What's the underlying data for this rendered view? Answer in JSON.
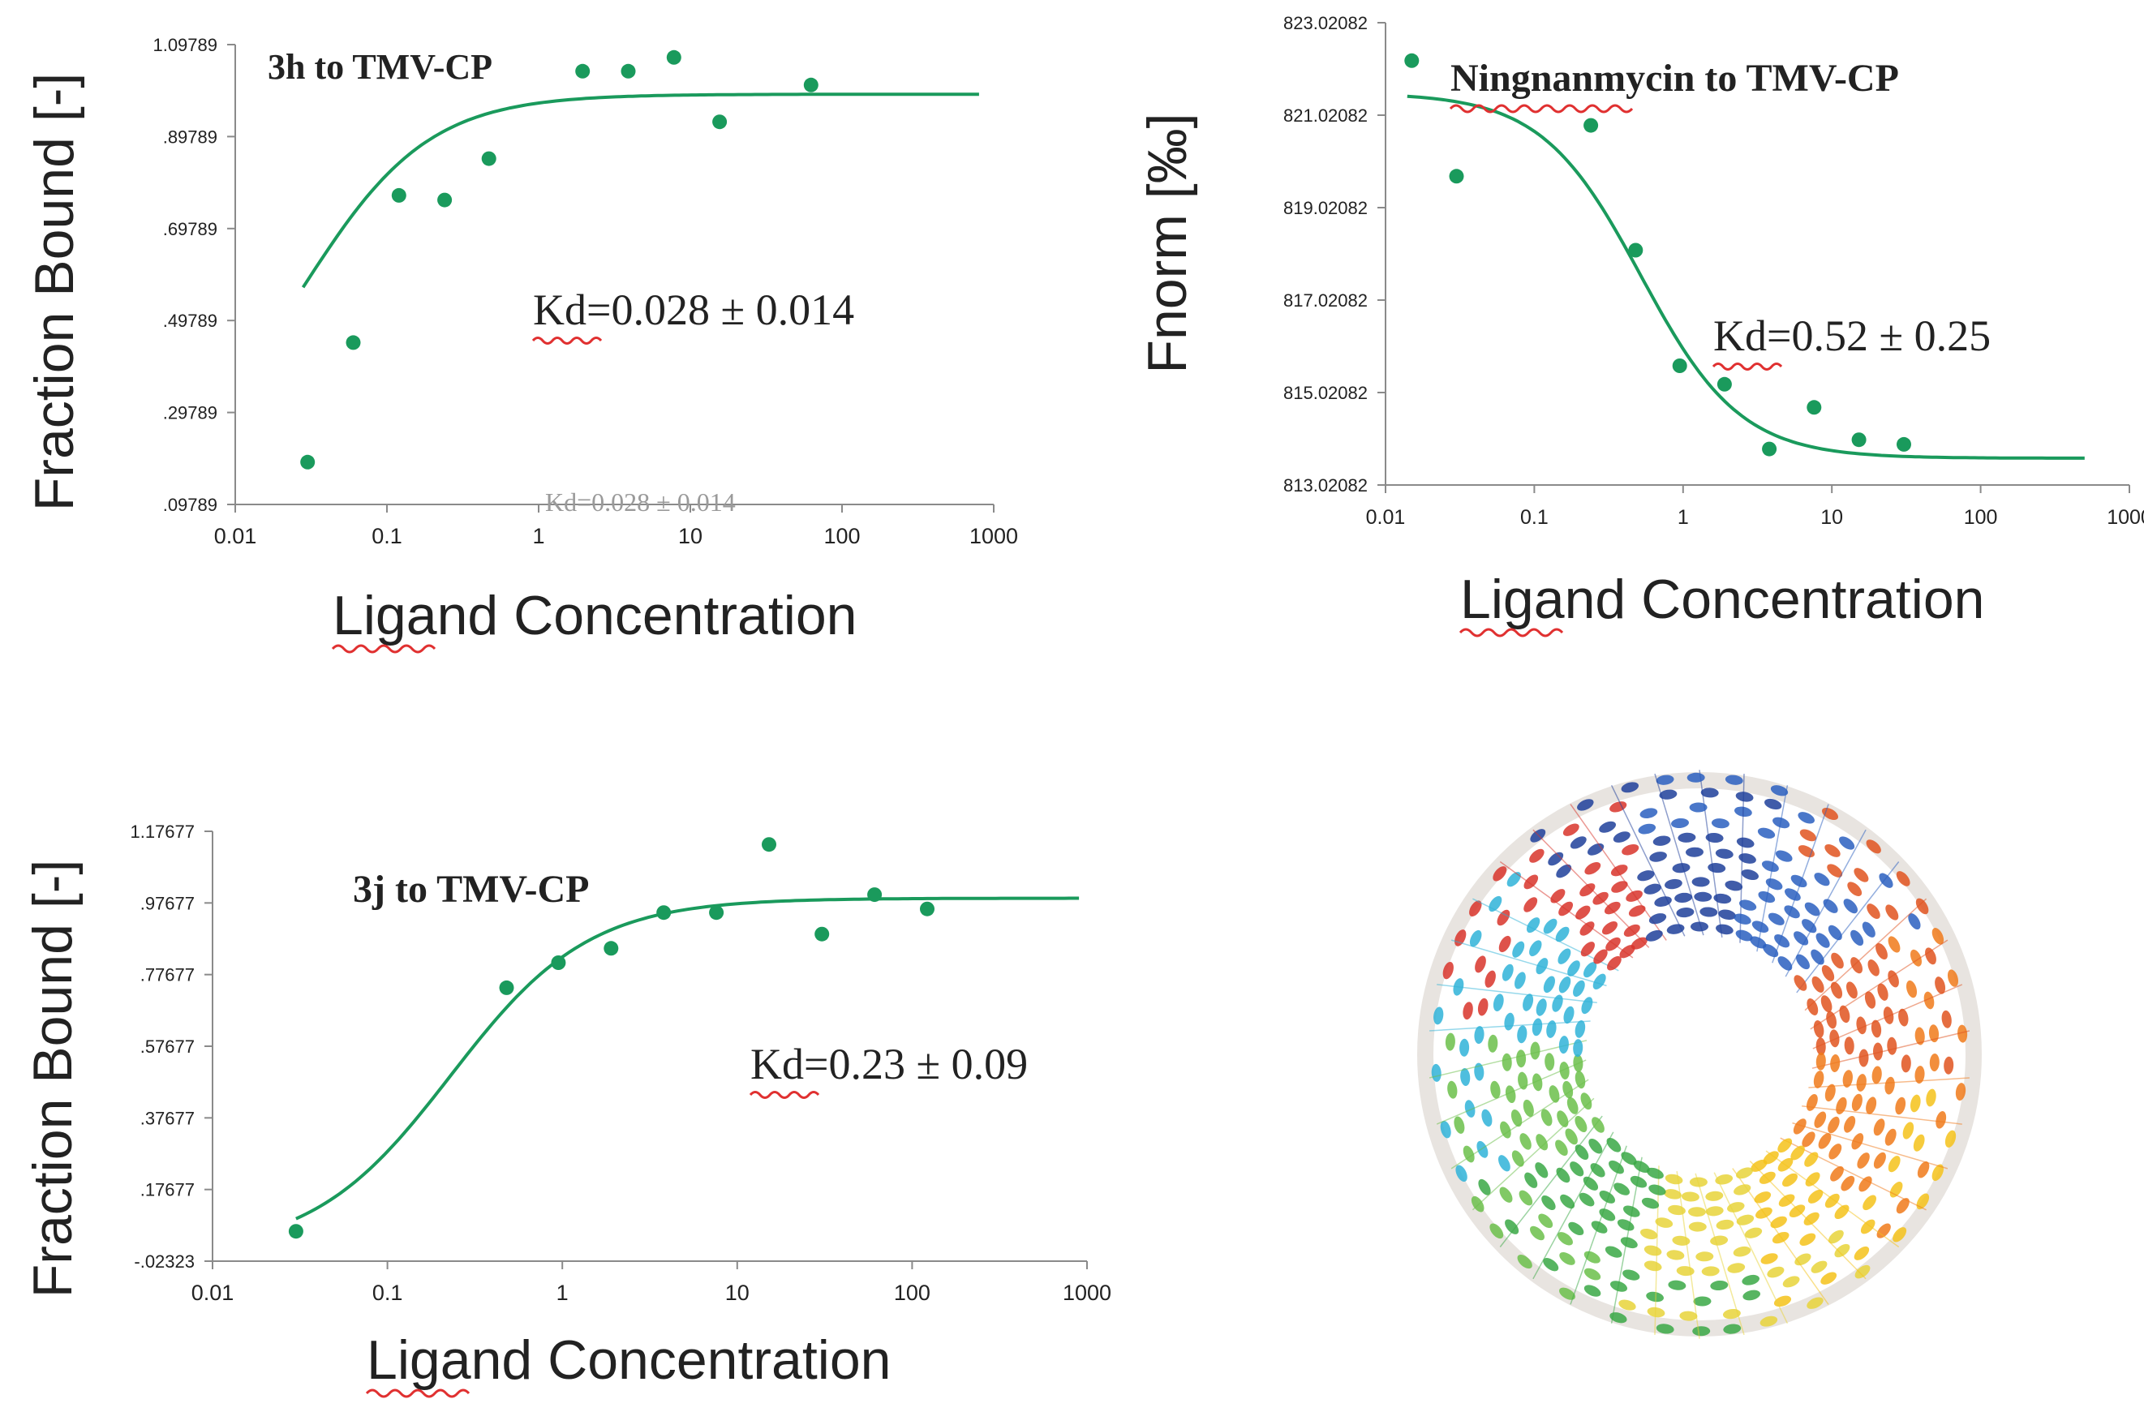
{
  "chart_data": [
    {
      "type": "scatter",
      "title": "3h to TMV-CP",
      "xlabel": "Ligand Concentration",
      "ylabel": "Fraction Bound [-]",
      "x_scale": "log",
      "xlim": [
        0.01,
        1000
      ],
      "ylim": [
        0.09789,
        1.09789
      ],
      "x_tick_labels": [
        "0.01",
        "0.1",
        "1",
        "10",
        "100",
        "1000"
      ],
      "y_tick_labels": [
        ".09789",
        ".29789",
        ".49789",
        ".69789",
        ".89789",
        "1.09789"
      ],
      "annotation": "Kd=0.028 ± 0.014",
      "watermark_annotation": "Kd=0.028 ± 0.014",
      "series": [
        {
          "name": "measured",
          "x": [
            0.03,
            0.06,
            0.12,
            0.24,
            0.47,
            1.95,
            3.9,
            7.8,
            15.6,
            62.5
          ],
          "y": [
            0.19,
            0.45,
            0.77,
            0.76,
            0.85,
            1.04,
            1.04,
            1.07,
            0.93,
            1.01
          ]
        },
        {
          "name": "fit",
          "model": "hill_binding",
          "kd": 0.028,
          "fit_x_range": [
            0.028,
            800
          ],
          "bottom": 0.15,
          "top": 0.99,
          "hill": 1.05
        }
      ]
    },
    {
      "type": "scatter",
      "title": "Ningnanmycin to TMV-CP",
      "xlabel": "Ligand Concentration",
      "ylabel": "Fnorm [‰]",
      "x_scale": "log",
      "xlim": [
        0.01,
        1000
      ],
      "ylim": [
        813.02082,
        823.02082
      ],
      "x_tick_labels": [
        "0.01",
        "0.1",
        "1",
        "10",
        "100",
        "1000"
      ],
      "y_tick_labels": [
        "813.02082",
        "815.02082",
        "817.02082",
        "819.02082",
        "821.02082",
        "823.02082"
      ],
      "annotation": "Kd=0.52 ± 0.25",
      "series": [
        {
          "name": "measured",
          "x": [
            0.015,
            0.03,
            0.24,
            0.48,
            0.95,
            1.9,
            3.8,
            7.6,
            15.2,
            30.5
          ],
          "y": [
            822.2,
            819.7,
            820.8,
            818.1,
            815.6,
            815.2,
            813.8,
            814.7,
            814.0,
            813.9
          ]
        },
        {
          "name": "fit",
          "model": "hill_binding",
          "kd": 0.52,
          "fit_x_range": [
            0.014,
            500
          ],
          "bottom": 821.5,
          "top": 813.6,
          "hill": 1.3
        }
      ]
    },
    {
      "type": "scatter",
      "title": "3j to TMV-CP",
      "xlabel": "Ligand Concentration",
      "ylabel": "Fraction Bound [-]",
      "x_scale": "log",
      "xlim": [
        0.01,
        1000
      ],
      "ylim": [
        -0.02323,
        1.17677
      ],
      "x_tick_labels": [
        "0.01",
        "0.1",
        "1",
        "10",
        "100",
        "1000"
      ],
      "y_tick_labels": [
        "-.02323",
        ".17677",
        ".37677",
        ".57677",
        ".77677",
        ".97677",
        "1.17677"
      ],
      "annotation": "Kd=0.23 ± 0.09",
      "series": [
        {
          "name": "measured",
          "x": [
            0.03,
            0.48,
            0.95,
            1.9,
            3.8,
            7.6,
            15.2,
            30.5,
            61,
            122
          ],
          "y": [
            0.06,
            0.74,
            0.81,
            0.85,
            0.95,
            0.95,
            1.14,
            0.89,
            1.0,
            0.96
          ]
        },
        {
          "name": "fit",
          "model": "hill_binding",
          "kd": 0.23,
          "fit_x_range": [
            0.03,
            900
          ],
          "bottom": 0.0,
          "top": 0.99,
          "hill": 1.1
        }
      ]
    }
  ],
  "colors": {
    "marker": "#1a9a5c",
    "fit_line": "#1a9a5c",
    "axis": "#8a8a8a",
    "text": "#222222",
    "squiggle": "#e03030"
  },
  "structure_image": {
    "description_icon": "tmv-cp-disk-protein-structure"
  }
}
